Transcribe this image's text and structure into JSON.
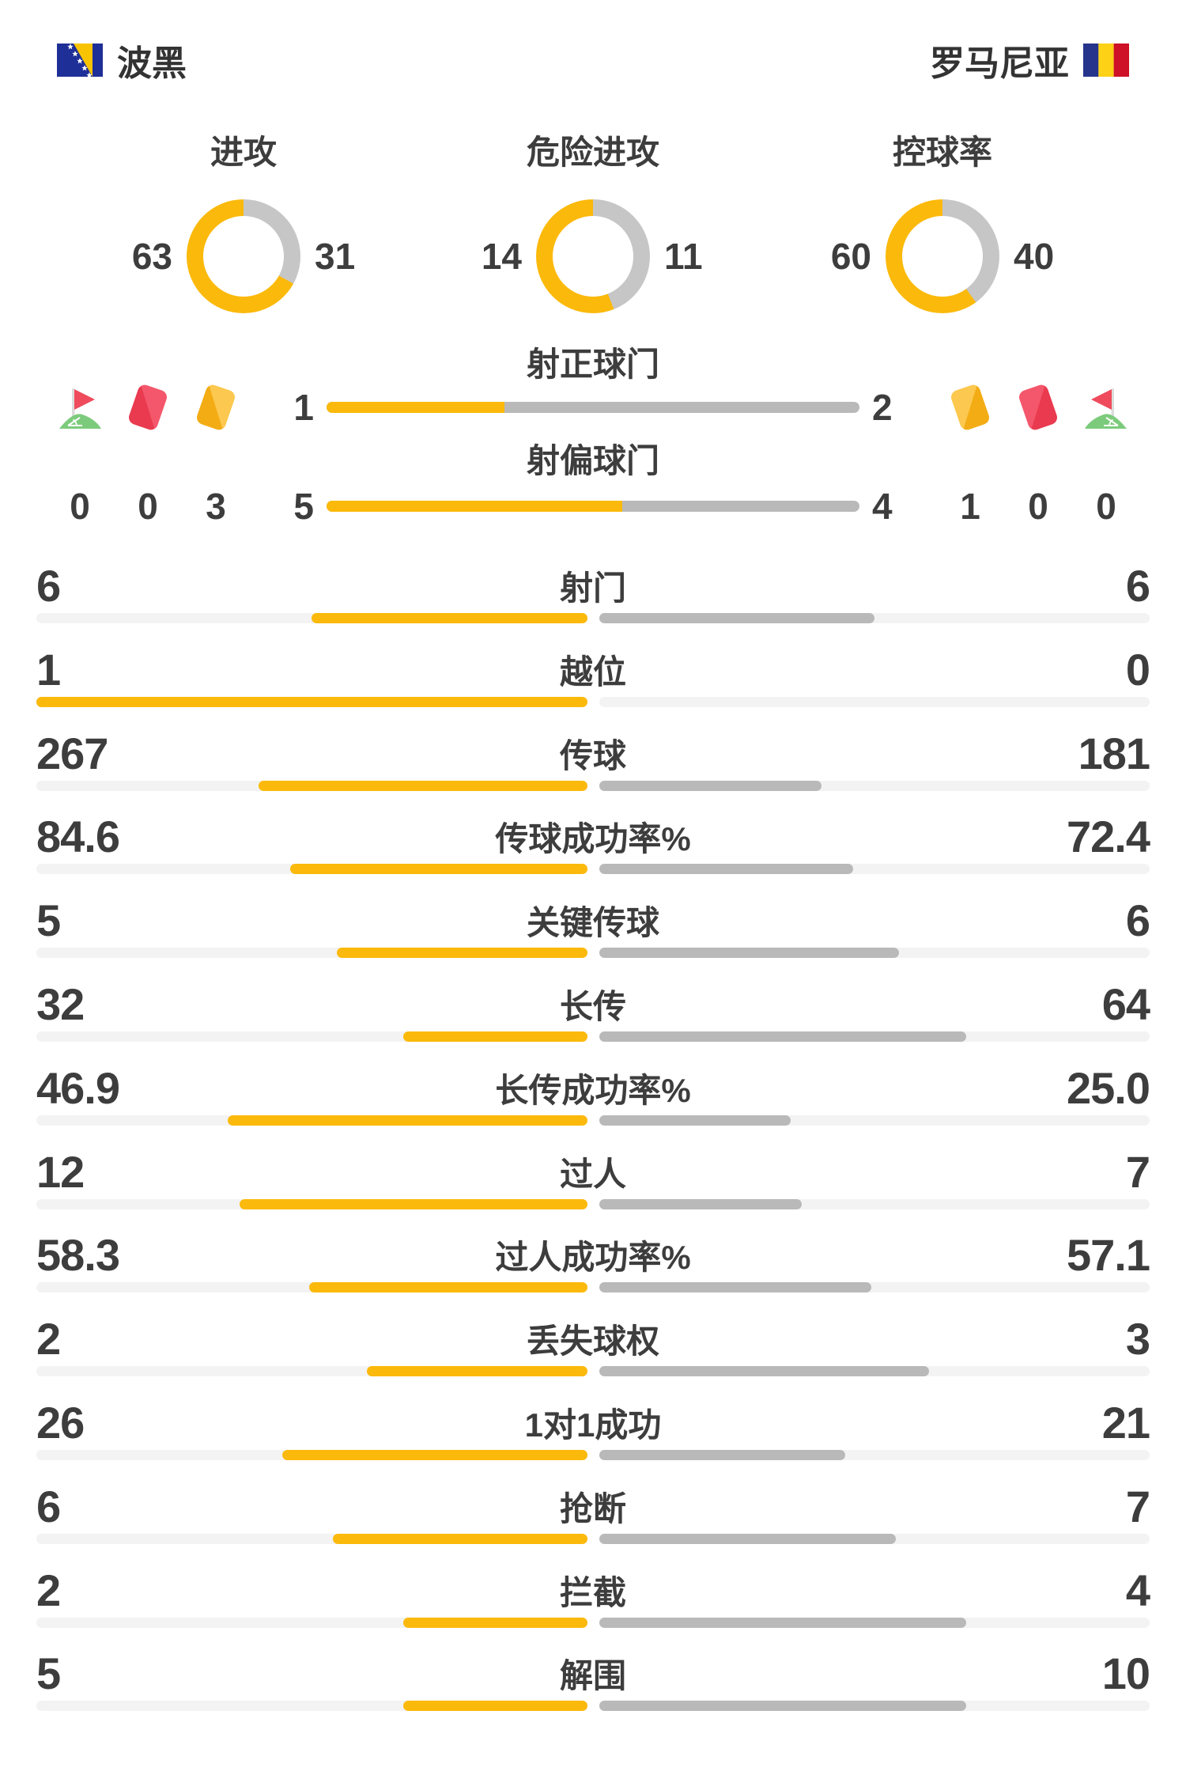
{
  "header": {
    "home": {
      "name": "波黑"
    },
    "away": {
      "name": "罗马尼亚"
    }
  },
  "donuts": [
    {
      "label": "进攻",
      "home": "63",
      "away": "31"
    },
    {
      "label": "危险进攻",
      "home": "14",
      "away": "11"
    },
    {
      "label": "控球率",
      "home": "60",
      "away": "40"
    }
  ],
  "discipline": {
    "left": [
      {
        "type": "corner-flag",
        "count": "0"
      },
      {
        "type": "red-card",
        "count": "0"
      },
      {
        "type": "yellow-card",
        "count": "3"
      }
    ],
    "right": [
      {
        "type": "yellow-card",
        "count": "1"
      },
      {
        "type": "red-card",
        "count": "0"
      },
      {
        "type": "corner-flag",
        "count": "0"
      }
    ]
  },
  "shots": [
    {
      "label": "射正球门",
      "home": "1",
      "away": "2"
    },
    {
      "label": "射偏球门",
      "home": "5",
      "away": "4"
    }
  ],
  "stats": [
    {
      "label": "射门",
      "home": "6",
      "away": "6"
    },
    {
      "label": "越位",
      "home": "1",
      "away": "0"
    },
    {
      "label": "传球",
      "home": "267",
      "away": "181"
    },
    {
      "label": "传球成功率%",
      "home": "84.6",
      "away": "72.4"
    },
    {
      "label": "关键传球",
      "home": "5",
      "away": "6"
    },
    {
      "label": "长传",
      "home": "32",
      "away": "64"
    },
    {
      "label": "长传成功率%",
      "home": "46.9",
      "away": "25.0"
    },
    {
      "label": "过人",
      "home": "12",
      "away": "7"
    },
    {
      "label": "过人成功率%",
      "home": "58.3",
      "away": "57.1"
    },
    {
      "label": "丢失球权",
      "home": "2",
      "away": "3"
    },
    {
      "label": "1对1成功",
      "home": "26",
      "away": "21"
    },
    {
      "label": "抢断",
      "home": "6",
      "away": "7"
    },
    {
      "label": "拦截",
      "home": "2",
      "away": "4"
    },
    {
      "label": "解围",
      "home": "5",
      "away": "10"
    }
  ],
  "colors": {
    "home": "#FBB90B",
    "away": "#B9B9B9",
    "donut_away": "#C6C6C6",
    "track": "#F3F3F4",
    "text": "#3D3D3D"
  },
  "chart_data": [
    {
      "type": "pie",
      "title": "进攻",
      "series": [
        {
          "name": "波黑",
          "value": 63
        },
        {
          "name": "罗马尼亚",
          "value": 31
        }
      ],
      "legend_position": "sides"
    },
    {
      "type": "pie",
      "title": "危险进攻",
      "series": [
        {
          "name": "波黑",
          "value": 14
        },
        {
          "name": "罗马尼亚",
          "value": 11
        }
      ],
      "legend_position": "sides"
    },
    {
      "type": "pie",
      "title": "控球率",
      "series": [
        {
          "name": "波黑",
          "value": 60
        },
        {
          "name": "罗马尼亚",
          "value": 40
        }
      ],
      "legend_position": "sides"
    },
    {
      "type": "bar",
      "categories": [
        "射正球门",
        "射偏球门",
        "射门",
        "越位",
        "传球",
        "传球成功率%",
        "关键传球",
        "长传",
        "长传成功率%",
        "过人",
        "过人成功率%",
        "丢失球权",
        "1对1成功",
        "抢断",
        "拦截",
        "解围",
        "角球",
        "红牌",
        "黄牌"
      ],
      "series": [
        {
          "name": "波黑",
          "values": [
            1,
            5,
            6,
            1,
            267,
            84.6,
            5,
            32,
            46.9,
            12,
            58.3,
            2,
            26,
            6,
            2,
            5,
            0,
            0,
            3
          ]
        },
        {
          "name": "罗马尼亚",
          "values": [
            2,
            4,
            6,
            0,
            181,
            72.4,
            6,
            64,
            25.0,
            7,
            57.1,
            3,
            21,
            7,
            4,
            10,
            0,
            0,
            1
          ]
        }
      ],
      "title": "比赛数据对比",
      "xlabel": "",
      "ylabel": "",
      "grid": false
    }
  ]
}
